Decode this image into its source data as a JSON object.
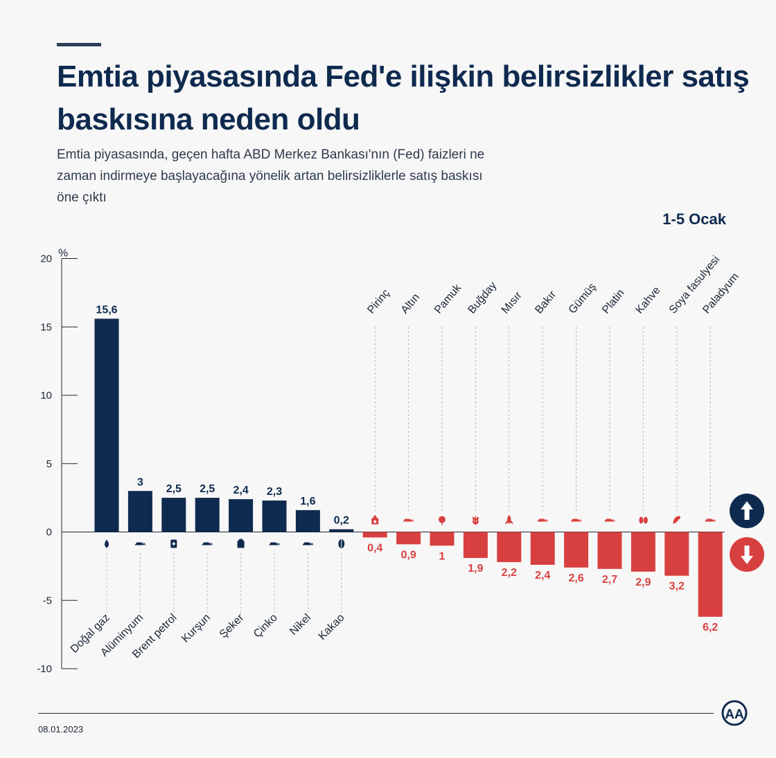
{
  "title": "Emtia piyasasında Fed'e ilişkin belirsizlikler satış baskısına neden oldu",
  "subtitle": "Emtia piyasasında, geçen hafta ABD Merkez Bankası'nın (Fed) faizleri ne zaman indirmeye başlayacağına yönelik artan belirsizliklerle satış baskısı öne çıktı",
  "period": "1-5 Ocak",
  "date": "08.01.2023",
  "logo_text": "AA",
  "colors": {
    "positive": "#0f2a4f",
    "negative": "#d84040",
    "axis": "#1a2535"
  },
  "chart_data": {
    "type": "bar",
    "title": "Emtia piyasasında Fed'e ilişkin belirsizlikler satış baskısına neden oldu",
    "ylabel": "%",
    "ylim": [
      -10,
      20
    ],
    "yticks": [
      20,
      15,
      10,
      5,
      0,
      -5,
      -10
    ],
    "ytick_labels": [
      "20",
      "15",
      "10",
      "5",
      "0",
      "-5",
      "-10"
    ],
    "categories": [
      "Doğal gaz",
      "Alüminyum",
      "Brent petrol",
      "Kurşun",
      "Şeker",
      "Çinko",
      "Nikel",
      "Kakao",
      "Pirinç",
      "Altın",
      "Pamuk",
      "Buğday",
      "Mısır",
      "Bakır",
      "Gümüş",
      "Platin",
      "Kahve",
      "Soya fasulyesi",
      "Paladyum"
    ],
    "values": [
      15.6,
      3,
      2.5,
      2.5,
      2.4,
      2.3,
      1.6,
      0.2,
      -0.4,
      -0.9,
      -1,
      -1.9,
      -2.2,
      -2.4,
      -2.6,
      -2.7,
      -2.9,
      -3.2,
      -6.2
    ],
    "value_labels": [
      "15,6",
      "3",
      "2,5",
      "2,5",
      "2,4",
      "2,3",
      "1,6",
      "0,2",
      "0,4",
      "0,9",
      "1",
      "1,9",
      "2,2",
      "2,4",
      "2,6",
      "2,7",
      "2,9",
      "3,2",
      "6,2"
    ],
    "icons": [
      "flame-icon",
      "ingot-icon",
      "barrel-icon",
      "ingot-icon",
      "sugar-bag-icon",
      "ingot-icon",
      "ingot-icon",
      "cocoa-icon",
      "rice-bag-icon",
      "ingot-icon",
      "cotton-icon",
      "wheat-icon",
      "corn-icon",
      "ingot-icon",
      "ingot-icon",
      "ingot-icon",
      "coffee-bean-icon",
      "soybean-icon",
      "ingot-icon"
    ]
  }
}
